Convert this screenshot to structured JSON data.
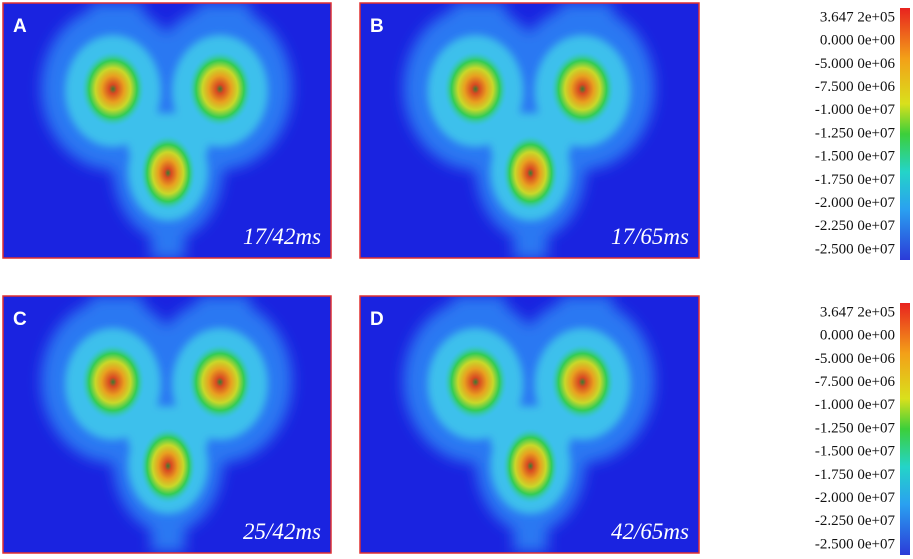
{
  "panels": [
    {
      "label": "A",
      "time": "17/42ms"
    },
    {
      "label": "B",
      "time": "17/65ms"
    },
    {
      "label": "C",
      "time": "25/42ms"
    },
    {
      "label": "D",
      "time": "42/65ms"
    }
  ],
  "colorbars": [
    {
      "ticks": [
        "3.647 2e+05",
        "0.000 0e+00",
        "-5.000 0e+06",
        "-7.500 0e+06",
        "-1.000 0e+07",
        "-1.250 0e+07",
        "-1.500 0e+07",
        "-1.750 0e+07",
        "-2.000 0e+07",
        "-2.250 0e+07",
        "-2.500 0e+07"
      ]
    },
    {
      "ticks": [
        "3.647 2e+05",
        "0.000 0e+00",
        "-5.000 0e+06",
        "-7.500 0e+06",
        "-1.000 0e+07",
        "-1.250 0e+07",
        "-1.500 0e+07",
        "-1.750 0e+07",
        "-2.000 0e+07",
        "-2.250 0e+07",
        "-2.500 0e+07"
      ]
    }
  ]
}
